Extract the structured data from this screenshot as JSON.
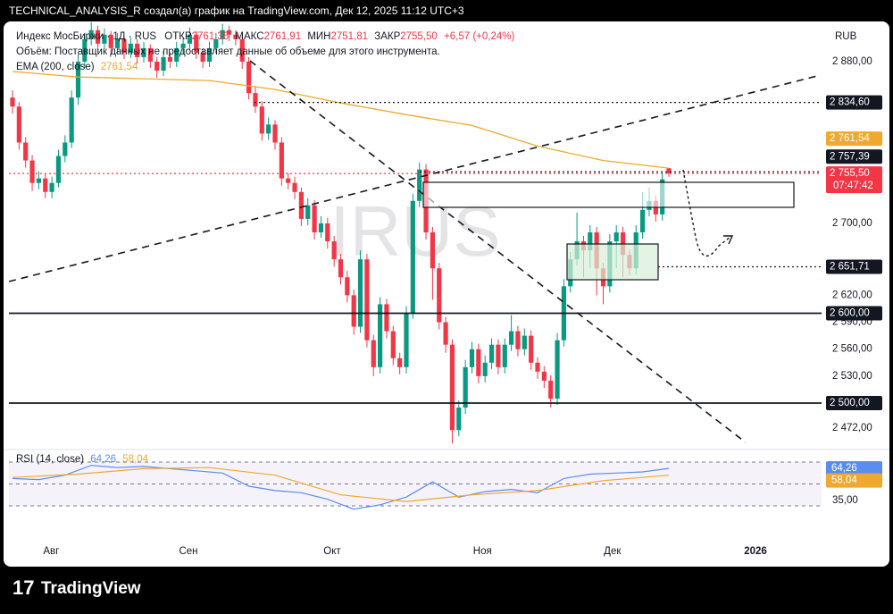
{
  "header": {
    "text": "TECHNICAL_ANALYSIS_R создал(а) график на TradingView.com, Дек 12, 2025 11:12 UTC+3"
  },
  "footer": {
    "brand": "TradingView"
  },
  "chart_data": {
    "type": "candlestick",
    "instrument": "Индекс МосБиржи · 1Д · RUS",
    "ohlc_legend": [
      {
        "name": "ОТКР",
        "value": "2761,36"
      },
      {
        "name": "МАКС",
        "value": "2761,91"
      },
      {
        "name": "МИН",
        "value": "2751,81"
      },
      {
        "name": "ЗАКР",
        "value": "2755,50"
      }
    ],
    "change": "+6,57 (+0,24%)",
    "volume_note": "Объём: Поставщик данных не предоставляет данные об объеме для этого инструмента.",
    "currency": "RUB",
    "watermark": "IRUS",
    "up_color": "#089981",
    "down_color": "#f23645",
    "grid": false,
    "ylim": [
      2451.3,
      2928.7
    ],
    "yticks": [
      {
        "value": 2880,
        "label": "2 880,00"
      },
      {
        "value": 2700,
        "label": "2 700,00"
      },
      {
        "value": 2620,
        "label": "2 620,00"
      },
      {
        "value": 2590,
        "label": "2 590,00"
      },
      {
        "value": 2560,
        "label": "2 560,00"
      },
      {
        "value": 2530,
        "label": "2 530,00"
      },
      {
        "value": 2472,
        "label": "2 472,00"
      }
    ],
    "xticks": [
      {
        "value": 5.9,
        "label": "Авг"
      },
      {
        "value": 26.8,
        "label": "Сен"
      },
      {
        "value": 48.7,
        "label": "Окт"
      },
      {
        "value": 71.6,
        "label": "Ноя"
      },
      {
        "value": 91.4,
        "label": "Дек"
      },
      {
        "value": 113.2,
        "label": "2026"
      }
    ],
    "candles": [
      [
        2840,
        2848,
        2822,
        2830
      ],
      [
        2830,
        2835,
        2782,
        2790
      ],
      [
        2790,
        2796,
        2762,
        2770
      ],
      [
        2770,
        2776,
        2736,
        2745
      ],
      [
        2745,
        2758,
        2738,
        2750
      ],
      [
        2750,
        2755,
        2728,
        2735
      ],
      [
        2735,
        2752,
        2728,
        2745
      ],
      [
        2745,
        2782,
        2740,
        2775
      ],
      [
        2775,
        2798,
        2768,
        2790
      ],
      [
        2790,
        2848,
        2784,
        2840
      ],
      [
        2840,
        2888,
        2832,
        2880
      ],
      [
        2880,
        2912,
        2873,
        2905
      ],
      [
        2905,
        2924,
        2898,
        2915
      ],
      [
        2915,
        2920,
        2893,
        2900
      ],
      [
        2900,
        2917,
        2894,
        2910
      ],
      [
        2910,
        2914,
        2888,
        2895
      ],
      [
        2895,
        2912,
        2889,
        2905
      ],
      [
        2905,
        2909,
        2883,
        2890
      ],
      [
        2890,
        2907,
        2884,
        2900
      ],
      [
        2900,
        2905,
        2878,
        2885
      ],
      [
        2885,
        2902,
        2879,
        2895
      ],
      [
        2895,
        2899,
        2873,
        2880
      ],
      [
        2880,
        2885,
        2862,
        2870
      ],
      [
        2870,
        2892,
        2864,
        2885
      ],
      [
        2885,
        2890,
        2873,
        2880
      ],
      [
        2880,
        2902,
        2874,
        2895
      ],
      [
        2895,
        2907,
        2889,
        2900
      ],
      [
        2900,
        2918,
        2894,
        2910
      ],
      [
        2910,
        2914,
        2883,
        2890
      ],
      [
        2890,
        2895,
        2873,
        2880
      ],
      [
        2880,
        2902,
        2874,
        2895
      ],
      [
        2895,
        2912,
        2889,
        2905
      ],
      [
        2905,
        2922,
        2899,
        2915
      ],
      [
        2915,
        2920,
        2903,
        2910
      ],
      [
        2910,
        2915,
        2898,
        2905
      ],
      [
        2905,
        2910,
        2872,
        2880
      ],
      [
        2880,
        2885,
        2838,
        2845
      ],
      [
        2845,
        2852,
        2823,
        2830
      ],
      [
        2830,
        2836,
        2792,
        2800
      ],
      [
        2800,
        2818,
        2793,
        2810
      ],
      [
        2810,
        2815,
        2782,
        2790
      ],
      [
        2790,
        2796,
        2742,
        2750
      ],
      [
        2750,
        2756,
        2738,
        2745
      ],
      [
        2745,
        2752,
        2727,
        2735
      ],
      [
        2735,
        2740,
        2697,
        2705
      ],
      [
        2705,
        2728,
        2698,
        2720
      ],
      [
        2720,
        2726,
        2682,
        2690
      ],
      [
        2690,
        2708,
        2684,
        2700
      ],
      [
        2700,
        2706,
        2672,
        2680
      ],
      [
        2680,
        2686,
        2652,
        2660
      ],
      [
        2660,
        2666,
        2632,
        2640
      ],
      [
        2640,
        2647,
        2612,
        2620
      ],
      [
        2620,
        2626,
        2576,
        2585
      ],
      [
        2585,
        2670,
        2578,
        2660
      ],
      [
        2660,
        2666,
        2562,
        2570
      ],
      [
        2570,
        2576,
        2530,
        2540
      ],
      [
        2540,
        2618,
        2533,
        2610
      ],
      [
        2610,
        2616,
        2572,
        2580
      ],
      [
        2580,
        2586,
        2542,
        2550
      ],
      [
        2550,
        2556,
        2532,
        2540
      ],
      [
        2540,
        2608,
        2533,
        2600
      ],
      [
        2600,
        2733,
        2594,
        2725
      ],
      [
        2725,
        2768,
        2718,
        2760
      ],
      [
        2760,
        2766,
        2682,
        2690
      ],
      [
        2690,
        2696,
        2615,
        2650
      ],
      [
        2650,
        2656,
        2582,
        2590
      ],
      [
        2590,
        2596,
        2556,
        2565
      ],
      [
        2565,
        2571,
        2455,
        2470
      ],
      [
        2470,
        2503,
        2463,
        2495
      ],
      [
        2495,
        2548,
        2488,
        2540
      ],
      [
        2540,
        2568,
        2533,
        2560
      ],
      [
        2560,
        2566,
        2522,
        2530
      ],
      [
        2530,
        2553,
        2523,
        2545
      ],
      [
        2545,
        2572,
        2538,
        2565
      ],
      [
        2565,
        2571,
        2532,
        2540
      ],
      [
        2540,
        2572,
        2533,
        2565
      ],
      [
        2565,
        2598,
        2558,
        2580
      ],
      [
        2580,
        2586,
        2552,
        2560
      ],
      [
        2560,
        2583,
        2553,
        2575
      ],
      [
        2575,
        2581,
        2537,
        2545
      ],
      [
        2545,
        2551,
        2527,
        2535
      ],
      [
        2535,
        2541,
        2517,
        2525
      ],
      [
        2525,
        2531,
        2495,
        2505
      ],
      [
        2505,
        2578,
        2498,
        2570
      ],
      [
        2570,
        2638,
        2563,
        2630
      ],
      [
        2630,
        2668,
        2623,
        2660
      ],
      [
        2660,
        2712,
        2653,
        2680
      ],
      [
        2680,
        2686,
        2640,
        2670
      ],
      [
        2670,
        2698,
        2650,
        2690
      ],
      [
        2690,
        2696,
        2620,
        2650
      ],
      [
        2650,
        2656,
        2610,
        2630
      ],
      [
        2630,
        2688,
        2623,
        2680
      ],
      [
        2680,
        2698,
        2650,
        2690
      ],
      [
        2690,
        2696,
        2640,
        2665
      ],
      [
        2665,
        2671,
        2642,
        2650
      ],
      [
        2650,
        2698,
        2643,
        2690
      ],
      [
        2690,
        2735,
        2683,
        2715
      ],
      [
        2715,
        2740,
        2708,
        2725
      ],
      [
        2725,
        2731,
        2702,
        2710
      ],
      [
        2710,
        2757,
        2703,
        2749
      ],
      [
        2761.36,
        2761.91,
        2751.81,
        2755.5
      ]
    ],
    "ema": {
      "name": "EMA (200, close)",
      "color": "#f0a830",
      "value_label": "2761,54",
      "x": [
        0,
        10,
        20,
        30,
        40,
        50,
        60,
        70,
        80,
        90,
        100
      ],
      "values": [
        2869,
        2863,
        2861,
        2859,
        2849,
        2834,
        2821,
        2809,
        2786,
        2770,
        2761.54
      ]
    },
    "price_labels": [
      {
        "value": 2834.6,
        "label": "2 834,60",
        "color": "#131722",
        "line": "dotted"
      },
      {
        "value": 2761.54,
        "label": "2 761,54",
        "color": "#f0a830",
        "line": "none"
      },
      {
        "value": 2757.39,
        "label": "2 757,39",
        "color": "#131722",
        "line": "dotted"
      },
      {
        "value": 2755.5,
        "label": "2 755,50",
        "countdown": "07:47:42",
        "color": "#f23645",
        "line": "dotted"
      },
      {
        "value": 2651.71,
        "label": "2 651,71",
        "color": "#131722",
        "line": "dotted"
      },
      {
        "value": 2600,
        "label": "2 600,00",
        "color": "#131722",
        "line": "solid"
      },
      {
        "value": 2500,
        "label": "2 500,00",
        "color": "#131722",
        "line": "solid"
      }
    ],
    "rsi": {
      "name": "RSI (14, close)",
      "ylim": [
        21,
        78.2
      ],
      "yticks": [
        {
          "value": 35,
          "label": "35,00"
        }
      ],
      "levels": [
        70,
        50,
        30
      ],
      "series": [
        {
          "name": "RSI",
          "color": "#5b8def",
          "value_label": "64,26",
          "x": [
            0,
            4,
            8,
            12,
            16,
            20,
            24,
            28,
            32,
            36,
            40,
            44,
            48,
            52,
            56,
            60,
            64,
            68,
            72,
            76,
            80,
            84,
            88,
            92,
            96,
            100
          ],
          "values": [
            55,
            54,
            58,
            67,
            65,
            66,
            64,
            62,
            60,
            48,
            44,
            42,
            36,
            27,
            31,
            38,
            52,
            38,
            43,
            45,
            42,
            55,
            59,
            60,
            61,
            64.26
          ]
        },
        {
          "name": "RSI MA",
          "color": "#f0a830",
          "value_label": "58,04",
          "x": [
            0,
            10,
            20,
            30,
            40,
            50,
            60,
            70,
            80,
            90,
            100
          ],
          "values": [
            56,
            59,
            64,
            65,
            58,
            40,
            34,
            40,
            44,
            53,
            58.04
          ]
        }
      ]
    }
  }
}
